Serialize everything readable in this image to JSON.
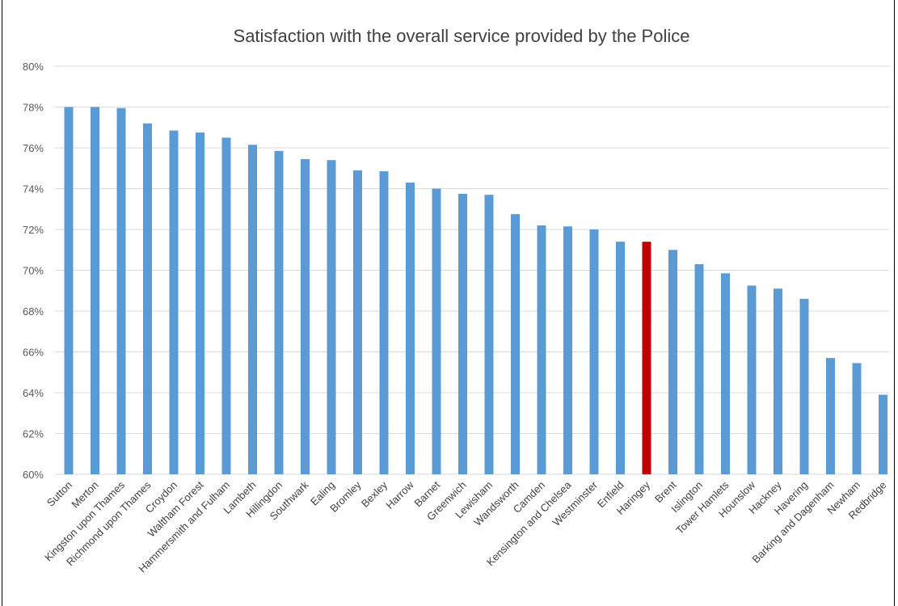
{
  "chart_data": {
    "type": "bar",
    "title": "Satisfaction with the overall service provided by the Police",
    "xlabel": "",
    "ylabel": "",
    "ylim": [
      60,
      80
    ],
    "yticks": [
      "60%",
      "62%",
      "64%",
      "66%",
      "68%",
      "70%",
      "72%",
      "74%",
      "76%",
      "78%",
      "80%"
    ],
    "grid": true,
    "legend": "none",
    "colors": {
      "default": "#5b9bd5",
      "highlight": "#c00000",
      "grid": "#d9d9d9"
    },
    "highlight_category": "Haringey",
    "categories": [
      "Sutton",
      "Merton",
      "Kingston upon Thames",
      "Richmond upon Thames",
      "Croydon",
      "Waltham Forest",
      "Hammersmith and Fulham",
      "Lambeth",
      "Hillingdon",
      "Southwark",
      "Ealing",
      "Bromley",
      "Bexley",
      "Harrow",
      "Barnet",
      "Greenwich",
      "Lewisham",
      "Wandsworth",
      "Camden",
      "Kensington and Chelsea",
      "Westminster",
      "Enfield",
      "Haringey",
      "Brent",
      "Islington",
      "Tower Hamlets",
      "Hounslow",
      "Hackney",
      "Havering",
      "Barking and Dagenham",
      "Newham",
      "Redbridge"
    ],
    "values": [
      78.0,
      78.0,
      77.95,
      77.2,
      76.85,
      76.75,
      76.5,
      76.15,
      75.85,
      75.45,
      75.4,
      74.9,
      74.85,
      74.3,
      74.0,
      73.75,
      73.7,
      72.75,
      72.2,
      72.15,
      72.0,
      71.4,
      71.4,
      71.0,
      70.3,
      69.85,
      69.25,
      69.1,
      68.6,
      65.7,
      65.45,
      63.9
    ]
  }
}
